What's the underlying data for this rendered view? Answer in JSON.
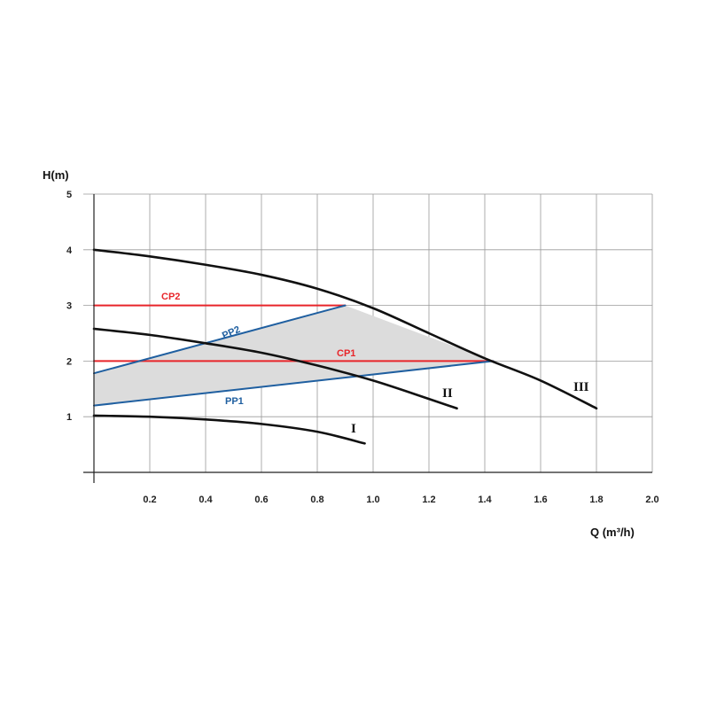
{
  "chart_data": {
    "type": "line",
    "ylabel": "H(m)",
    "xlabel": "Q (m³/h)",
    "xlim": [
      0,
      2.0
    ],
    "ylim": [
      0,
      5
    ],
    "x_ticks": [
      "0.2",
      "0.4",
      "0.6",
      "0.8",
      "1.0",
      "1.2",
      "1.4",
      "1.6",
      "1.8",
      "2.0"
    ],
    "y_ticks": [
      "1",
      "2",
      "3",
      "4",
      "5"
    ],
    "grid": true,
    "colors": {
      "pump_curve": "#111111",
      "constant_pressure": "#e8252a",
      "proportional_pressure": "#1f5fa0",
      "fill": "#dcdcdc"
    },
    "shaded_region": [
      [
        0,
        1.2
      ],
      [
        0,
        1.78
      ],
      [
        0.9,
        3.0
      ],
      [
        1.43,
        2.0
      ]
    ],
    "series": [
      {
        "name": "I",
        "kind": "pump",
        "x": [
          0,
          0.2,
          0.4,
          0.6,
          0.8,
          0.97
        ],
        "y": [
          1.02,
          1.0,
          0.95,
          0.87,
          0.73,
          0.52
        ]
      },
      {
        "name": "II",
        "kind": "pump",
        "x": [
          0,
          0.2,
          0.4,
          0.6,
          0.8,
          1.0,
          1.2,
          1.3
        ],
        "y": [
          2.58,
          2.47,
          2.32,
          2.15,
          1.92,
          1.65,
          1.32,
          1.15
        ]
      },
      {
        "name": "III",
        "kind": "pump",
        "x": [
          0,
          0.2,
          0.4,
          0.6,
          0.8,
          1.0,
          1.2,
          1.4,
          1.6,
          1.8
        ],
        "y": [
          4.0,
          3.88,
          3.73,
          3.55,
          3.3,
          2.95,
          2.5,
          2.05,
          1.65,
          1.15
        ]
      },
      {
        "name": "CP2",
        "kind": "cp",
        "x": [
          0,
          0.9
        ],
        "y": [
          3.0,
          3.0
        ]
      },
      {
        "name": "CP1",
        "kind": "cp",
        "x": [
          0,
          1.43
        ],
        "y": [
          2.0,
          2.0
        ]
      },
      {
        "name": "PP2",
        "kind": "pp",
        "x": [
          0,
          0.9
        ],
        "y": [
          1.78,
          3.0
        ]
      },
      {
        "name": "PP1",
        "kind": "pp",
        "x": [
          0,
          1.43
        ],
        "y": [
          1.2,
          2.0
        ]
      }
    ]
  }
}
